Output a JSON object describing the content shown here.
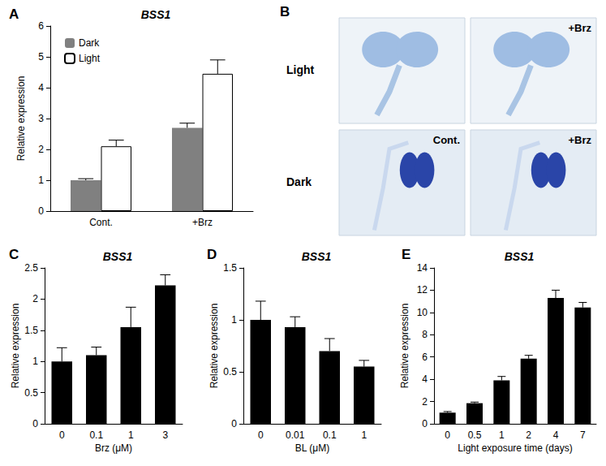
{
  "chart_data": [
    {
      "panel": "A",
      "type": "bar",
      "title": "BSS1",
      "y_label": "Relative expression",
      "categories": [
        "Cont.",
        "+Brz"
      ],
      "series": [
        {
          "name": "Dark",
          "color": "#808080",
          "values": [
            1.0,
            2.7
          ],
          "errors": [
            0.05,
            0.15
          ]
        },
        {
          "name": "Light",
          "color": "#ffffff",
          "values": [
            2.1,
            4.45
          ],
          "errors": [
            0.2,
            0.45
          ]
        }
      ],
      "ylim": [
        0,
        6
      ],
      "yticks": [
        0,
        1,
        2,
        3,
        4,
        5,
        6
      ],
      "grid": false,
      "legend": "upper left"
    },
    {
      "panel": "B",
      "type": "image",
      "row_labels": [
        "Light",
        "Dark"
      ],
      "images": [
        {
          "row": "Light"
        },
        {
          "row": "Light",
          "label": "+Brz"
        },
        {
          "row": "Dark",
          "label": "Cont."
        },
        {
          "row": "Dark",
          "label": "+Brz"
        }
      ]
    },
    {
      "panel": "C",
      "type": "bar",
      "title": "BSS1",
      "y_label": "Relative expression",
      "x_label": "Brz (μM)",
      "categories": [
        "0",
        "0.1",
        "1",
        "3"
      ],
      "values": [
        1.0,
        1.1,
        1.55,
        2.22
      ],
      "errors": [
        0.22,
        0.13,
        0.32,
        0.17
      ],
      "color": "#000000",
      "ylim": [
        0,
        2.5
      ],
      "yticks": [
        0,
        0.5,
        1,
        1.5,
        2,
        2.5
      ],
      "grid": false
    },
    {
      "panel": "D",
      "type": "bar",
      "title": "BSS1",
      "y_label": "Relative expression",
      "x_label": "BL (μM)",
      "categories": [
        "0",
        "0.01",
        "0.1",
        "1"
      ],
      "values": [
        1.0,
        0.93,
        0.7,
        0.55
      ],
      "errors": [
        0.18,
        0.1,
        0.12,
        0.06
      ],
      "color": "#000000",
      "ylim": [
        0,
        1.5
      ],
      "yticks": [
        0,
        0.5,
        1,
        1.5
      ],
      "grid": false
    },
    {
      "panel": "E",
      "type": "bar",
      "title": "BSS1",
      "y_label": "Relative expression",
      "x_label": "Light exposure time (days)",
      "categories": [
        "0",
        "0.5",
        "1",
        "2",
        "4",
        "7"
      ],
      "values": [
        1.0,
        1.85,
        3.9,
        5.85,
        11.3,
        10.45
      ],
      "errors": [
        0.1,
        0.1,
        0.35,
        0.3,
        0.7,
        0.45
      ],
      "color": "#000000",
      "ylim": [
        0,
        14
      ],
      "yticks": [
        0,
        2,
        4,
        6,
        8,
        10,
        12,
        14
      ],
      "grid": false
    }
  ]
}
